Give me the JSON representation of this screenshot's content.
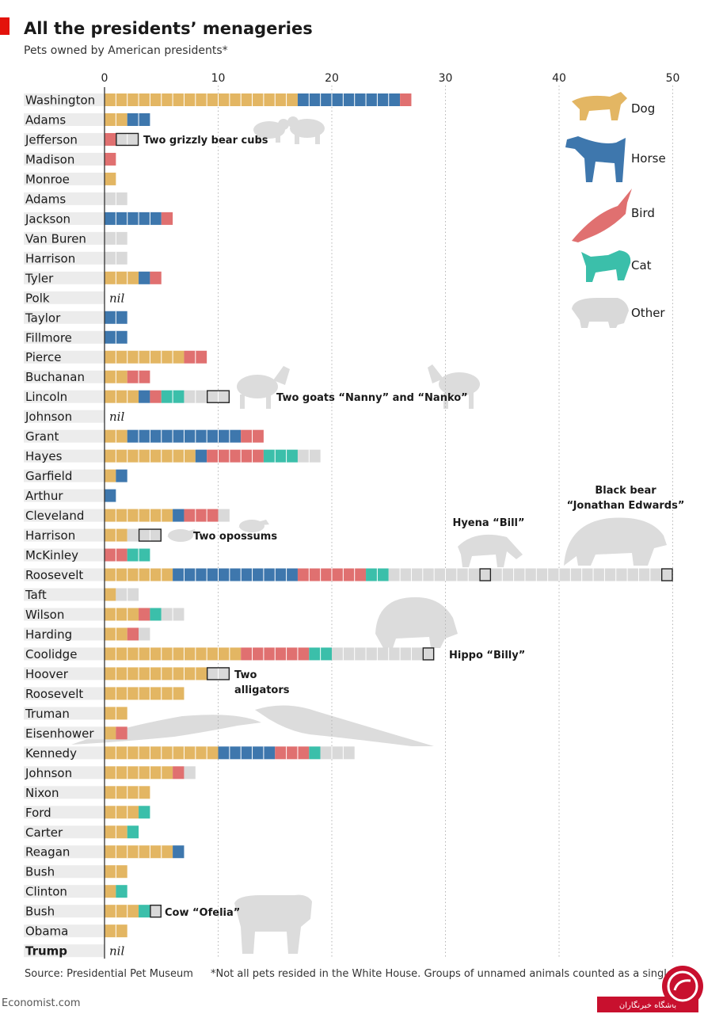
{
  "title": "All the presidents’ menageries",
  "subtitle": "Pets owned by American presidents*",
  "source": "Source: Presidential Pet Museum",
  "footnote": "*Not all pets resided in the White House. Groups of unnamed animals counted as a single pet",
  "brand": "Economist.com",
  "watermark_label": "باشگاه خبرنگاران",
  "colors": {
    "dog": "#e3b663",
    "horse": "#3e77ad",
    "bird": "#e07070",
    "cat": "#3bbfaa",
    "other": "#d9d9d9",
    "accent": "#e3120b"
  },
  "legend": [
    {
      "key": "dog",
      "label": "Dog",
      "icon": "dog-icon"
    },
    {
      "key": "horse",
      "label": "Horse",
      "icon": "horse-icon"
    },
    {
      "key": "bird",
      "label": "Bird",
      "icon": "bird-icon"
    },
    {
      "key": "cat",
      "label": "Cat",
      "icon": "cat-icon"
    },
    {
      "key": "other",
      "label": "Other",
      "icon": "pig-icon"
    }
  ],
  "nil_label": "nil",
  "chart_data": {
    "type": "bar",
    "stacked": true,
    "orientation": "horizontal",
    "xlim": [
      0,
      50
    ],
    "xticks": [
      0,
      10,
      20,
      30,
      40,
      50
    ],
    "grid": "vertical-dotted",
    "legend_position": "top-right",
    "series_order": [
      "dog",
      "horse",
      "bird",
      "cat",
      "other"
    ],
    "presidents": [
      {
        "name": "Washington",
        "dog": 17,
        "horse": 9,
        "bird": 1,
        "cat": 0,
        "other": 0
      },
      {
        "name": "Adams",
        "dog": 2,
        "horse": 2,
        "bird": 0,
        "cat": 0,
        "other": 0
      },
      {
        "name": "Jefferson",
        "dog": 0,
        "horse": 0,
        "bird": 1,
        "cat": 0,
        "other": 2
      },
      {
        "name": "Madison",
        "dog": 0,
        "horse": 0,
        "bird": 1,
        "cat": 0,
        "other": 0
      },
      {
        "name": "Monroe",
        "dog": 1,
        "horse": 0,
        "bird": 0,
        "cat": 0,
        "other": 0
      },
      {
        "name": "Adams",
        "dog": 0,
        "horse": 0,
        "bird": 0,
        "cat": 0,
        "other": 2
      },
      {
        "name": "Jackson",
        "dog": 0,
        "horse": 5,
        "bird": 1,
        "cat": 0,
        "other": 0
      },
      {
        "name": "Van Buren",
        "dog": 0,
        "horse": 0,
        "bird": 0,
        "cat": 0,
        "other": 2
      },
      {
        "name": "Harrison",
        "dog": 0,
        "horse": 0,
        "bird": 0,
        "cat": 0,
        "other": 2
      },
      {
        "name": "Tyler",
        "dog": 3,
        "horse": 1,
        "bird": 1,
        "cat": 0,
        "other": 0
      },
      {
        "name": "Polk",
        "nil": true,
        "dog": 0,
        "horse": 0,
        "bird": 0,
        "cat": 0,
        "other": 0
      },
      {
        "name": "Taylor",
        "dog": 0,
        "horse": 2,
        "bird": 0,
        "cat": 0,
        "other": 0
      },
      {
        "name": "Fillmore",
        "dog": 0,
        "horse": 2,
        "bird": 0,
        "cat": 0,
        "other": 0
      },
      {
        "name": "Pierce",
        "dog": 7,
        "horse": 0,
        "bird": 2,
        "cat": 0,
        "other": 0
      },
      {
        "name": "Buchanan",
        "dog": 2,
        "horse": 0,
        "bird": 2,
        "cat": 0,
        "other": 0
      },
      {
        "name": "Lincoln",
        "dog": 3,
        "horse": 1,
        "bird": 1,
        "cat": 2,
        "other": 4
      },
      {
        "name": "Johnson",
        "nil": true,
        "dog": 0,
        "horse": 0,
        "bird": 0,
        "cat": 0,
        "other": 0
      },
      {
        "name": "Grant",
        "dog": 2,
        "horse": 10,
        "bird": 2,
        "cat": 0,
        "other": 0
      },
      {
        "name": "Hayes",
        "dog": 8,
        "horse": 1,
        "bird": 5,
        "cat": 3,
        "other": 2
      },
      {
        "name": "Garfield",
        "dog": 1,
        "horse": 1,
        "bird": 0,
        "cat": 0,
        "other": 0
      },
      {
        "name": "Arthur",
        "dog": 0,
        "horse": 1,
        "bird": 0,
        "cat": 0,
        "other": 0
      },
      {
        "name": "Cleveland",
        "dog": 6,
        "horse": 1,
        "bird": 3,
        "cat": 0,
        "other": 1
      },
      {
        "name": "Harrison",
        "dog": 2,
        "horse": 0,
        "bird": 0,
        "cat": 0,
        "other": 3
      },
      {
        "name": "McKinley",
        "dog": 0,
        "horse": 0,
        "bird": 2,
        "cat": 2,
        "other": 0
      },
      {
        "name": "Roosevelt",
        "dog": 6,
        "horse": 11,
        "bird": 6,
        "cat": 2,
        "other": 25
      },
      {
        "name": "Taft",
        "dog": 1,
        "horse": 0,
        "bird": 0,
        "cat": 0,
        "other": 2
      },
      {
        "name": "Wilson",
        "dog": 3,
        "horse": 0,
        "bird": 1,
        "cat": 1,
        "other": 2
      },
      {
        "name": "Harding",
        "dog": 2,
        "horse": 0,
        "bird": 1,
        "cat": 0,
        "other": 1
      },
      {
        "name": "Coolidge",
        "dog": 12,
        "horse": 0,
        "bird": 6,
        "cat": 2,
        "other": 9
      },
      {
        "name": "Hoover",
        "dog": 9,
        "horse": 0,
        "bird": 0,
        "cat": 0,
        "other": 2
      },
      {
        "name": "Roosevelt",
        "dog": 7,
        "horse": 0,
        "bird": 0,
        "cat": 0,
        "other": 0
      },
      {
        "name": "Truman",
        "dog": 2,
        "horse": 0,
        "bird": 0,
        "cat": 0,
        "other": 0
      },
      {
        "name": "Eisenhower",
        "dog": 1,
        "horse": 0,
        "bird": 1,
        "cat": 0,
        "other": 0
      },
      {
        "name": "Kennedy",
        "dog": 10,
        "horse": 5,
        "bird": 3,
        "cat": 1,
        "other": 3
      },
      {
        "name": "Johnson",
        "dog": 6,
        "horse": 0,
        "bird": 1,
        "cat": 0,
        "other": 1
      },
      {
        "name": "Nixon",
        "dog": 4,
        "horse": 0,
        "bird": 0,
        "cat": 0,
        "other": 0
      },
      {
        "name": "Ford",
        "dog": 3,
        "horse": 0,
        "bird": 0,
        "cat": 1,
        "other": 0
      },
      {
        "name": "Carter",
        "dog": 2,
        "horse": 0,
        "bird": 0,
        "cat": 1,
        "other": 0
      },
      {
        "name": "Reagan",
        "dog": 6,
        "horse": 1,
        "bird": 0,
        "cat": 0,
        "other": 0
      },
      {
        "name": "Bush",
        "dog": 2,
        "horse": 0,
        "bird": 0,
        "cat": 0,
        "other": 0
      },
      {
        "name": "Clinton",
        "dog": 1,
        "horse": 0,
        "bird": 0,
        "cat": 1,
        "other": 0
      },
      {
        "name": "Bush",
        "dog": 3,
        "horse": 0,
        "bird": 0,
        "cat": 1,
        "other": 1
      },
      {
        "name": "Obama",
        "dog": 2,
        "horse": 0,
        "bird": 0,
        "cat": 0,
        "other": 0
      },
      {
        "name": "Trump",
        "nil": true,
        "bold": true,
        "dog": 0,
        "horse": 0,
        "bird": 0,
        "cat": 0,
        "other": 0
      }
    ],
    "highlighted_pets": [
      {
        "row": 2,
        "at": 1,
        "label": "Two grizzly bear cubs"
      },
      {
        "row": 15,
        "at": 9,
        "label": "Two goats “Nanny” and “Nanko”"
      },
      {
        "row": 22,
        "at": 3,
        "label": "Two opossums"
      },
      {
        "row": 24,
        "at": 33,
        "label": "Hyena “Bill”"
      },
      {
        "row": 24,
        "at": 49,
        "label": "Black bear “Jonathan Edwards”"
      },
      {
        "row": 28,
        "at": 28,
        "label": "Hippo “Billy”"
      },
      {
        "row": 29,
        "at": 9,
        "label": "Two alligators"
      },
      {
        "row": 41,
        "at": 4,
        "label": "Cow “Ofelia”"
      }
    ]
  }
}
